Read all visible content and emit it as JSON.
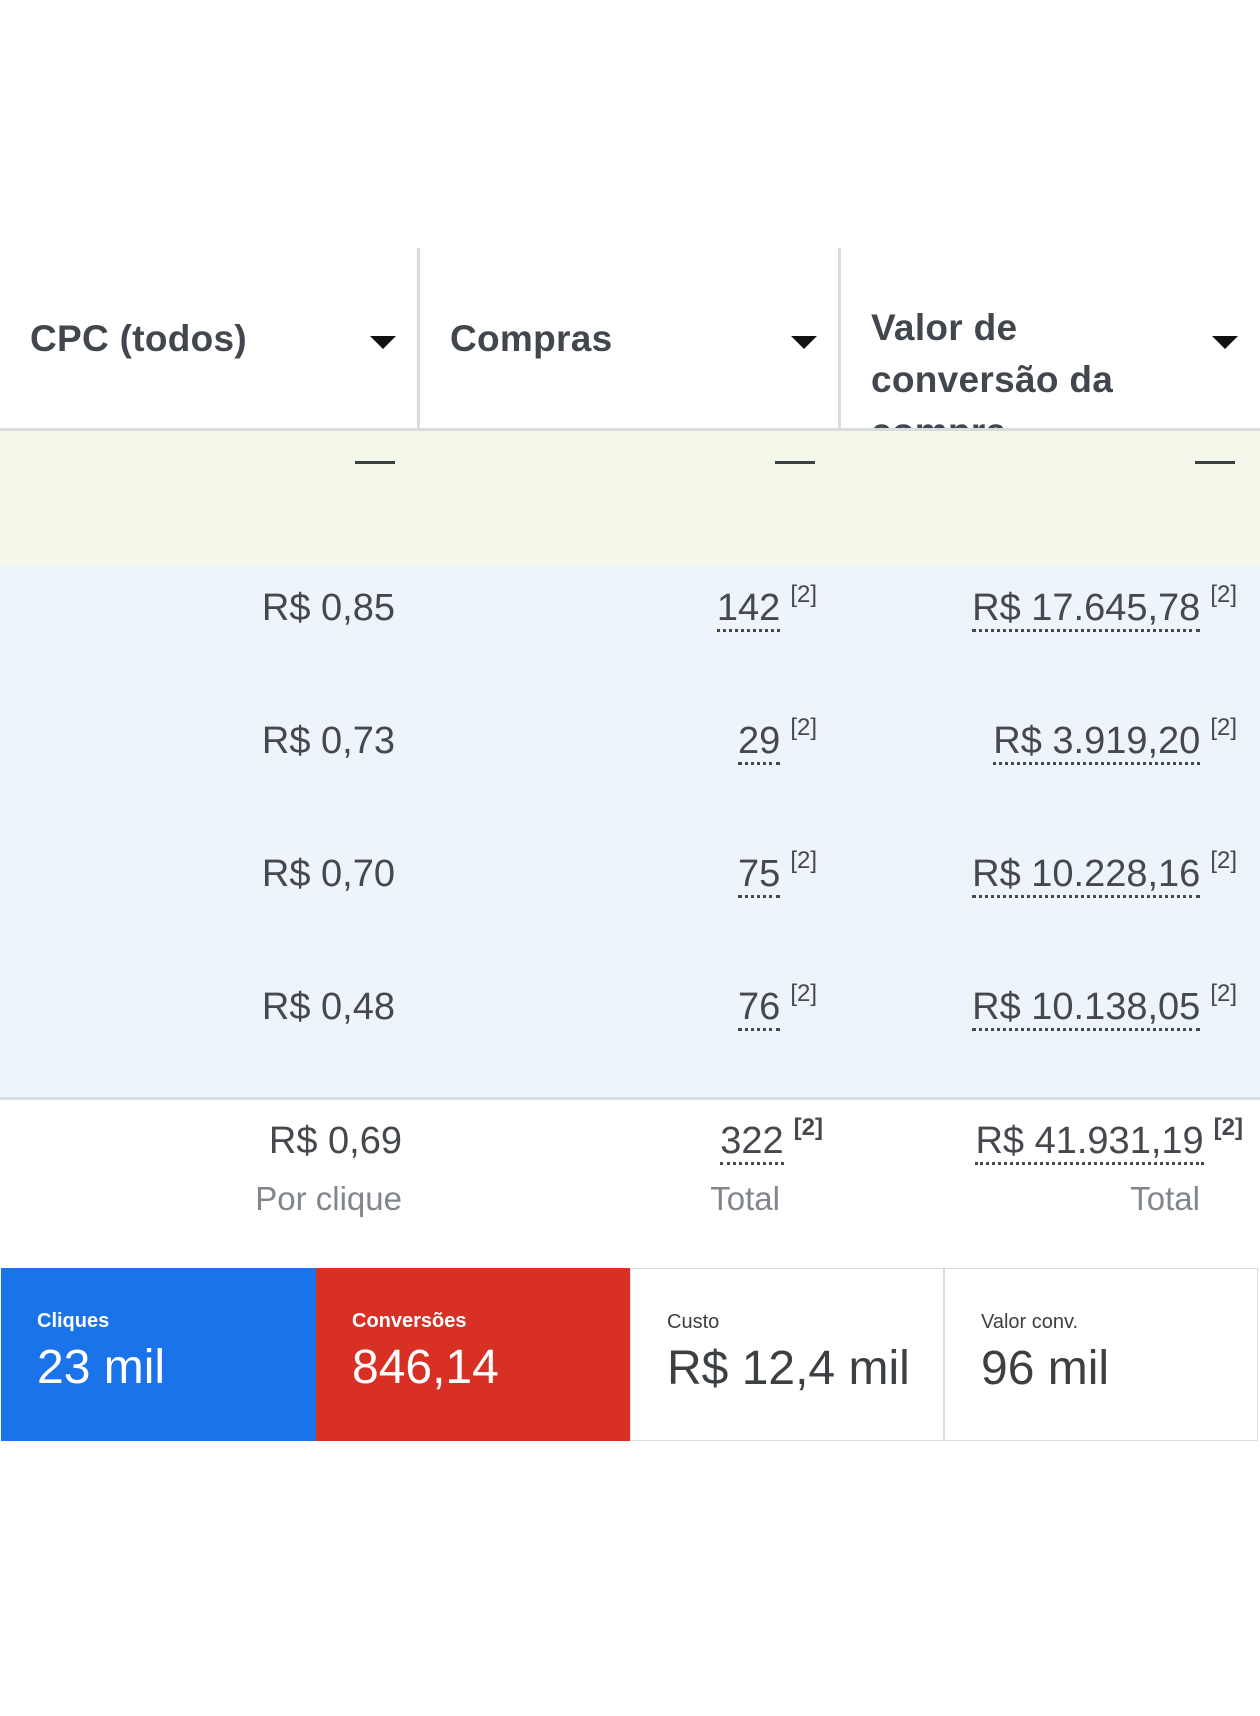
{
  "table": {
    "headers": [
      {
        "label": "CPC (todos)"
      },
      {
        "label": "Compras"
      },
      {
        "label": "Valor de conversão da compra"
      }
    ],
    "subtotal_row": [
      "—",
      "—",
      "—"
    ],
    "rows": [
      {
        "cpc": "R$ 0,85",
        "compras": "142",
        "valor": "R$ 17.645,78",
        "note": "[2]"
      },
      {
        "cpc": "R$ 0,73",
        "compras": "29",
        "valor": "R$ 3.919,20",
        "note": "[2]"
      },
      {
        "cpc": "R$ 0,70",
        "compras": "75",
        "valor": "R$ 10.228,16",
        "note": "[2]"
      },
      {
        "cpc": "R$ 0,48",
        "compras": "76",
        "valor": "R$ 10.138,05",
        "note": "[2]"
      }
    ],
    "totals": {
      "cpc": "R$ 0,69",
      "cpc_label": "Por clique",
      "compras": "322",
      "compras_label": "Total",
      "valor": "R$ 41.931,19",
      "valor_label": "Total",
      "note": "[2]"
    }
  },
  "cards": [
    {
      "label": "Cliques",
      "value": "23 mil",
      "color": "#1a73e8"
    },
    {
      "label": "Conversões",
      "value": "846,14",
      "color": "#d93025"
    },
    {
      "label": "Custo",
      "value": "R$ 12,4 mil"
    },
    {
      "label": "Valor conv.",
      "value": "96 mil"
    }
  ]
}
